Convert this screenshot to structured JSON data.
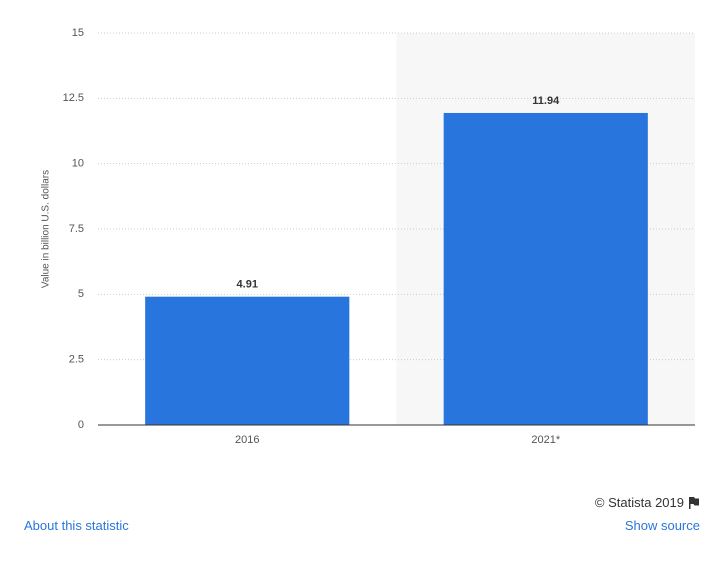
{
  "chart_data": {
    "type": "bar",
    "y_label": "Value in billion U.S. dollars",
    "categories": [
      "2016",
      "2021*"
    ],
    "values": [
      4.91,
      11.94
    ],
    "color": "#2876dd",
    "ylim": [
      0,
      15
    ],
    "yticks": [
      0,
      2.5,
      5,
      7.5,
      10,
      12.5,
      15
    ],
    "grid": true
  },
  "footer": {
    "copyright": "© Statista 2019",
    "about": "About this statistic",
    "source": "Show source"
  }
}
